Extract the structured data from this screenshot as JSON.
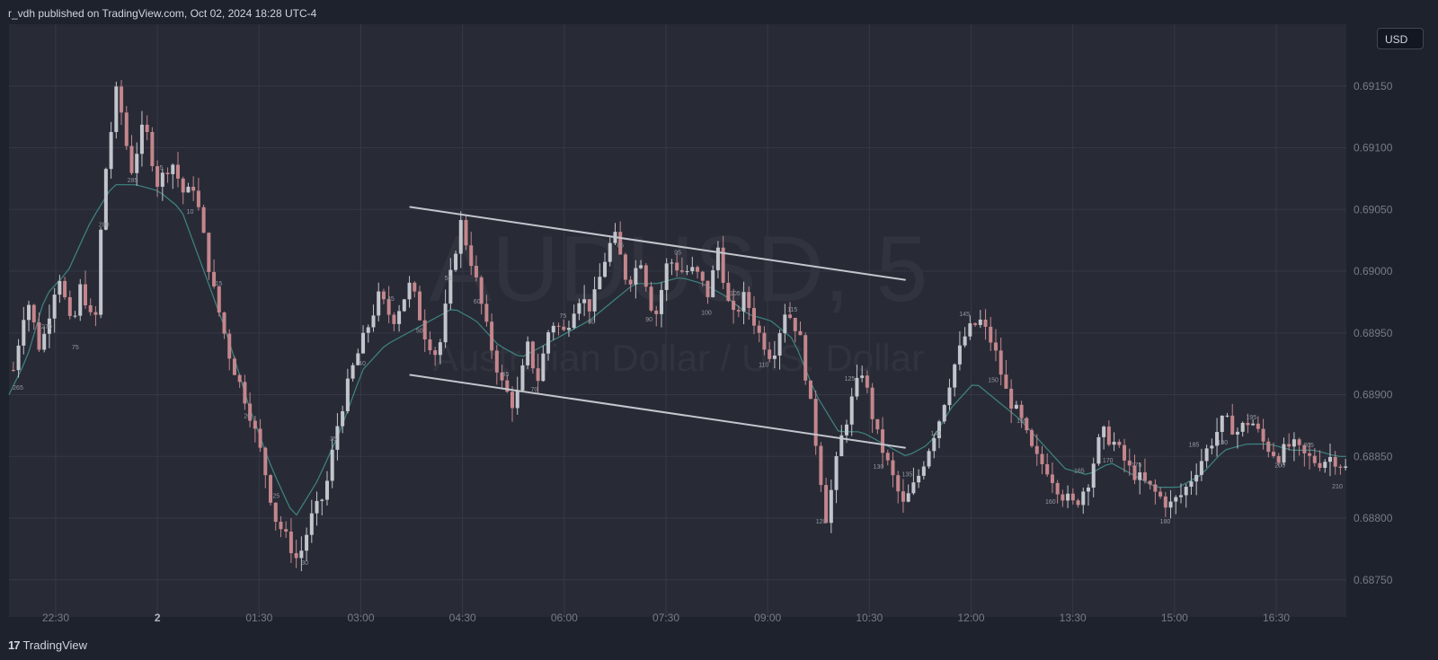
{
  "header": {
    "publish_info": "r_vdh published on TradingView.com, Oct 02, 2024 18:28 UTC-4"
  },
  "footer": {
    "brand": "TradingView",
    "logo_icon": "tradingview-logo-icon"
  },
  "currency_badge": "USD",
  "colors": {
    "background": "#1e222d",
    "pane": "#282b36",
    "grid": "#353945",
    "up_candle": "#c3c5cc",
    "down_candle": "#c4868c",
    "moving_average": "#3f8582",
    "channel_lines": "#c3c5cc",
    "axis_text": "#787b86",
    "watermark": "#31343f"
  },
  "chart_data": {
    "type": "candlestick",
    "watermark": {
      "symbol": "AUDUSD, 5",
      "name": "Australian Dollar / U.S. Dollar"
    },
    "y_axis": {
      "ticks": [
        "0.69150",
        "0.69100",
        "0.69050",
        "0.69000",
        "0.68950",
        "0.68900",
        "0.68850",
        "0.68800",
        "0.68750"
      ],
      "ylim": [
        0.6872,
        0.692
      ]
    },
    "x_axis": {
      "ticks": [
        "22:30",
        "2",
        "01:30",
        "03:00",
        "04:30",
        "06:00",
        "07:30",
        "09:00",
        "10:30",
        "12:00",
        "13:30",
        "15:00",
        "16:30"
      ]
    },
    "price_path": [
      [
        0,
        0.6892
      ],
      [
        6,
        0.6898
      ],
      [
        12,
        0.68935
      ],
      [
        20,
        0.69
      ],
      [
        26,
        0.6895
      ],
      [
        30,
        0.6899
      ],
      [
        36,
        0.6895
      ],
      [
        40,
        0.6907
      ],
      [
        46,
        0.6915
      ],
      [
        52,
        0.6908
      ],
      [
        58,
        0.6912
      ],
      [
        64,
        0.6907
      ],
      [
        70,
        0.6909
      ],
      [
        76,
        0.6906
      ],
      [
        80,
        0.6907
      ],
      [
        84,
        0.6903
      ],
      [
        88,
        0.6899
      ],
      [
        92,
        0.6896
      ],
      [
        96,
        0.6893
      ],
      [
        100,
        0.6891
      ],
      [
        104,
        0.6889
      ],
      [
        110,
        0.6885
      ],
      [
        116,
        0.688
      ],
      [
        122,
        0.6878
      ],
      [
        126,
        0.68765
      ],
      [
        132,
        0.688
      ],
      [
        138,
        0.6882
      ],
      [
        144,
        0.6888
      ],
      [
        150,
        0.6892
      ],
      [
        156,
        0.6895
      ],
      [
        162,
        0.6898
      ],
      [
        168,
        0.6896
      ],
      [
        176,
        0.6899
      ],
      [
        182,
        0.6895
      ],
      [
        188,
        0.6893
      ],
      [
        194,
        0.69
      ],
      [
        198,
        0.6904
      ],
      [
        204,
        0.69
      ],
      [
        210,
        0.6895
      ],
      [
        216,
        0.6891
      ],
      [
        222,
        0.6889
      ],
      [
        228,
        0.6894
      ],
      [
        232,
        0.6891
      ],
      [
        238,
        0.6896
      ],
      [
        244,
        0.6895
      ],
      [
        250,
        0.6898
      ],
      [
        256,
        0.6897
      ],
      [
        262,
        0.6901
      ],
      [
        266,
        0.6903
      ],
      [
        272,
        0.6899
      ],
      [
        278,
        0.6901
      ],
      [
        284,
        0.6896
      ],
      [
        290,
        0.6901
      ],
      [
        296,
        0.69
      ],
      [
        302,
        0.69
      ],
      [
        308,
        0.6898
      ],
      [
        312,
        0.6902
      ],
      [
        318,
        0.6896
      ],
      [
        324,
        0.6898
      ],
      [
        330,
        0.6895
      ],
      [
        336,
        0.6893
      ],
      [
        342,
        0.6897
      ],
      [
        348,
        0.6895
      ],
      [
        354,
        0.6888
      ],
      [
        360,
        0.688
      ],
      [
        366,
        0.6886
      ],
      [
        372,
        0.689
      ],
      [
        376,
        0.6892
      ],
      [
        382,
        0.6887
      ],
      [
        388,
        0.6884
      ],
      [
        394,
        0.6881
      ],
      [
        400,
        0.6883
      ],
      [
        406,
        0.6886
      ],
      [
        410,
        0.6888
      ],
      [
        416,
        0.6892
      ],
      [
        422,
        0.6895
      ],
      [
        428,
        0.6896
      ],
      [
        434,
        0.6894
      ],
      [
        440,
        0.689
      ],
      [
        446,
        0.6888
      ],
      [
        452,
        0.6885
      ],
      [
        458,
        0.6884
      ],
      [
        464,
        0.6882
      ],
      [
        470,
        0.6881
      ],
      [
        476,
        0.6883
      ],
      [
        482,
        0.6887
      ],
      [
        488,
        0.6886
      ],
      [
        494,
        0.6884
      ],
      [
        500,
        0.6883
      ],
      [
        506,
        0.6882
      ],
      [
        512,
        0.6881
      ],
      [
        518,
        0.6882
      ],
      [
        524,
        0.6884
      ],
      [
        530,
        0.6886
      ],
      [
        536,
        0.6888
      ],
      [
        542,
        0.6887
      ],
      [
        548,
        0.6888
      ],
      [
        554,
        0.6886
      ],
      [
        560,
        0.6885
      ],
      [
        566,
        0.6886
      ],
      [
        572,
        0.6885
      ],
      [
        578,
        0.68845
      ],
      [
        584,
        0.6885
      ],
      [
        590,
        0.6884
      ]
    ],
    "moving_average_path": [
      [
        0,
        0.689
      ],
      [
        8,
        0.6893
      ],
      [
        16,
        0.6898
      ],
      [
        26,
        0.69
      ],
      [
        36,
        0.6904
      ],
      [
        46,
        0.6907
      ],
      [
        56,
        0.6907
      ],
      [
        66,
        0.69065
      ],
      [
        76,
        0.6905
      ],
      [
        86,
        0.69
      ],
      [
        96,
        0.6895
      ],
      [
        106,
        0.6889
      ],
      [
        116,
        0.6884
      ],
      [
        126,
        0.688
      ],
      [
        136,
        0.6883
      ],
      [
        146,
        0.6887
      ],
      [
        156,
        0.6892
      ],
      [
        166,
        0.6894
      ],
      [
        176,
        0.6895
      ],
      [
        186,
        0.6896
      ],
      [
        196,
        0.6897
      ],
      [
        206,
        0.6896
      ],
      [
        216,
        0.6894
      ],
      [
        226,
        0.6893
      ],
      [
        236,
        0.6894
      ],
      [
        246,
        0.6895
      ],
      [
        256,
        0.6896
      ],
      [
        266,
        0.68975
      ],
      [
        276,
        0.6899
      ],
      [
        286,
        0.6899
      ],
      [
        296,
        0.68995
      ],
      [
        306,
        0.6899
      ],
      [
        316,
        0.6898
      ],
      [
        326,
        0.68965
      ],
      [
        336,
        0.6896
      ],
      [
        346,
        0.68945
      ],
      [
        356,
        0.689
      ],
      [
        366,
        0.6887
      ],
      [
        376,
        0.6887
      ],
      [
        386,
        0.6886
      ],
      [
        396,
        0.6885
      ],
      [
        406,
        0.6886
      ],
      [
        416,
        0.6889
      ],
      [
        426,
        0.6891
      ],
      [
        436,
        0.68895
      ],
      [
        446,
        0.6888
      ],
      [
        456,
        0.6886
      ],
      [
        466,
        0.6884
      ],
      [
        476,
        0.68835
      ],
      [
        486,
        0.68845
      ],
      [
        496,
        0.68835
      ],
      [
        506,
        0.68825
      ],
      [
        516,
        0.68825
      ],
      [
        526,
        0.68835
      ],
      [
        536,
        0.68855
      ],
      [
        546,
        0.6886
      ],
      [
        556,
        0.6886
      ],
      [
        566,
        0.68855
      ],
      [
        576,
        0.68855
      ],
      [
        586,
        0.6885
      ],
      [
        590,
        0.6885
      ]
    ],
    "channel_lines": [
      {
        "from": [
          0.3,
          0.69052
        ],
        "to": [
          0.67,
          0.68993
        ]
      },
      {
        "from": [
          0.3,
          0.68916
        ],
        "to": [
          0.67,
          0.68857
        ]
      }
    ],
    "bar_count_labels": [
      "265",
      "270",
      "75",
      "280",
      "285",
      "5",
      "10",
      "15",
      "20",
      "25",
      "30",
      "35",
      "40",
      "45",
      "50",
      "55",
      "60",
      "65",
      "70",
      "75",
      "80",
      "85",
      "90",
      "95",
      "100",
      "105",
      "110",
      "115",
      "120",
      "125",
      "130",
      "135",
      "140",
      "145",
      "150",
      "155",
      "160",
      "165",
      "170",
      "175",
      "180",
      "185",
      "190",
      "195",
      "200",
      "205",
      "210"
    ],
    "grid": true
  }
}
